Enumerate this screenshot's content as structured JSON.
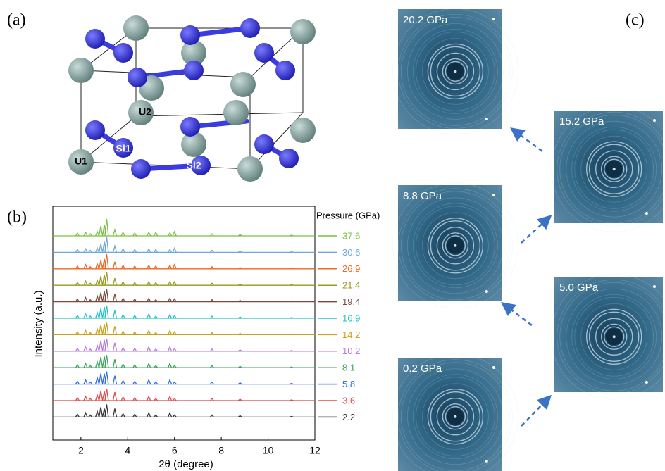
{
  "panel_labels": [
    "(a)",
    "(b)",
    "(c)"
  ],
  "structure": {
    "atom_labels": [
      "U1",
      "U2",
      "Si1",
      "Si2"
    ]
  },
  "chart_data": {
    "type": "line",
    "x_label": "2θ (degree)",
    "y_label": "Intensity (a.u.)",
    "legend_title": "Pressure (GPa)",
    "xlim": [
      0.8,
      12
    ],
    "xticks": [
      2,
      4,
      6,
      8,
      10,
      12
    ],
    "x": [
      1.85,
      2.2,
      2.4,
      2.7,
      2.85,
      3.0,
      3.1,
      3.45,
      3.8,
      4.3,
      4.9,
      5.2,
      5.8,
      6.0,
      7.6,
      8.8,
      11.0
    ],
    "series": [
      {
        "name": "37.6",
        "color": "#7ac143",
        "values": [
          4,
          5,
          3,
          6,
          14,
          16,
          24,
          9,
          5,
          4,
          5,
          5,
          4,
          6,
          3,
          2,
          1
        ]
      },
      {
        "name": "30.6",
        "color": "#6fa8dc",
        "values": [
          4,
          5,
          3,
          6,
          12,
          15,
          22,
          9,
          5,
          4,
          5,
          4,
          4,
          6,
          3,
          2,
          1
        ]
      },
      {
        "name": "26.9",
        "color": "#f26522",
        "values": [
          4,
          6,
          3,
          7,
          12,
          14,
          21,
          10,
          5,
          4,
          5,
          4,
          5,
          6,
          3,
          2,
          1
        ]
      },
      {
        "name": "21.4",
        "color": "#9a9a1c",
        "values": [
          4,
          6,
          3,
          7,
          13,
          15,
          19,
          10,
          5,
          4,
          5,
          4,
          5,
          5,
          3,
          2,
          1
        ]
      },
      {
        "name": "19.4",
        "color": "#7b4a3f",
        "values": [
          4,
          6,
          3,
          8,
          13,
          15,
          18,
          11,
          5,
          4,
          5,
          3,
          5,
          4,
          3,
          2,
          1
        ]
      },
      {
        "name": "16.9",
        "color": "#22c5c5",
        "values": [
          4,
          6,
          3,
          8,
          14,
          16,
          18,
          11,
          5,
          4,
          6,
          3,
          5,
          4,
          3,
          2,
          1
        ]
      },
      {
        "name": "14.2",
        "color": "#c9a21c",
        "values": [
          4,
          6,
          3,
          8,
          14,
          15,
          17,
          12,
          5,
          4,
          6,
          3,
          6,
          4,
          3,
          2,
          1
        ]
      },
      {
        "name": "10.2",
        "color": "#b57be0",
        "values": [
          4,
          6,
          3,
          8,
          15,
          16,
          18,
          12,
          5,
          4,
          6,
          3,
          6,
          4,
          3,
          2,
          1
        ]
      },
      {
        "name": "8.1",
        "color": "#3aa55a",
        "values": [
          4,
          6,
          3,
          8,
          15,
          16,
          18,
          12,
          5,
          4,
          6,
          3,
          6,
          3,
          3,
          2,
          1
        ]
      },
      {
        "name": "5.8",
        "color": "#2f6fdf",
        "values": [
          4,
          6,
          3,
          9,
          15,
          15,
          18,
          12,
          5,
          4,
          6,
          3,
          6,
          3,
          3,
          2,
          1
        ]
      },
      {
        "name": "3.6",
        "color": "#e24a4a",
        "values": [
          4,
          6,
          3,
          8,
          14,
          13,
          17,
          12,
          5,
          4,
          6,
          3,
          6,
          3,
          3,
          2,
          1
        ]
      },
      {
        "name": "2.2",
        "color": "#333333",
        "values": [
          4,
          6,
          3,
          8,
          14,
          12,
          18,
          12,
          5,
          4,
          6,
          3,
          6,
          3,
          3,
          2,
          1
        ]
      }
    ]
  },
  "images": [
    {
      "label": "20.2 GPa"
    },
    {
      "label": "15.2 GPa"
    },
    {
      "label": "8.8 GPa"
    },
    {
      "label": "5.0 GPa"
    },
    {
      "label": "0.2 GPa"
    }
  ]
}
